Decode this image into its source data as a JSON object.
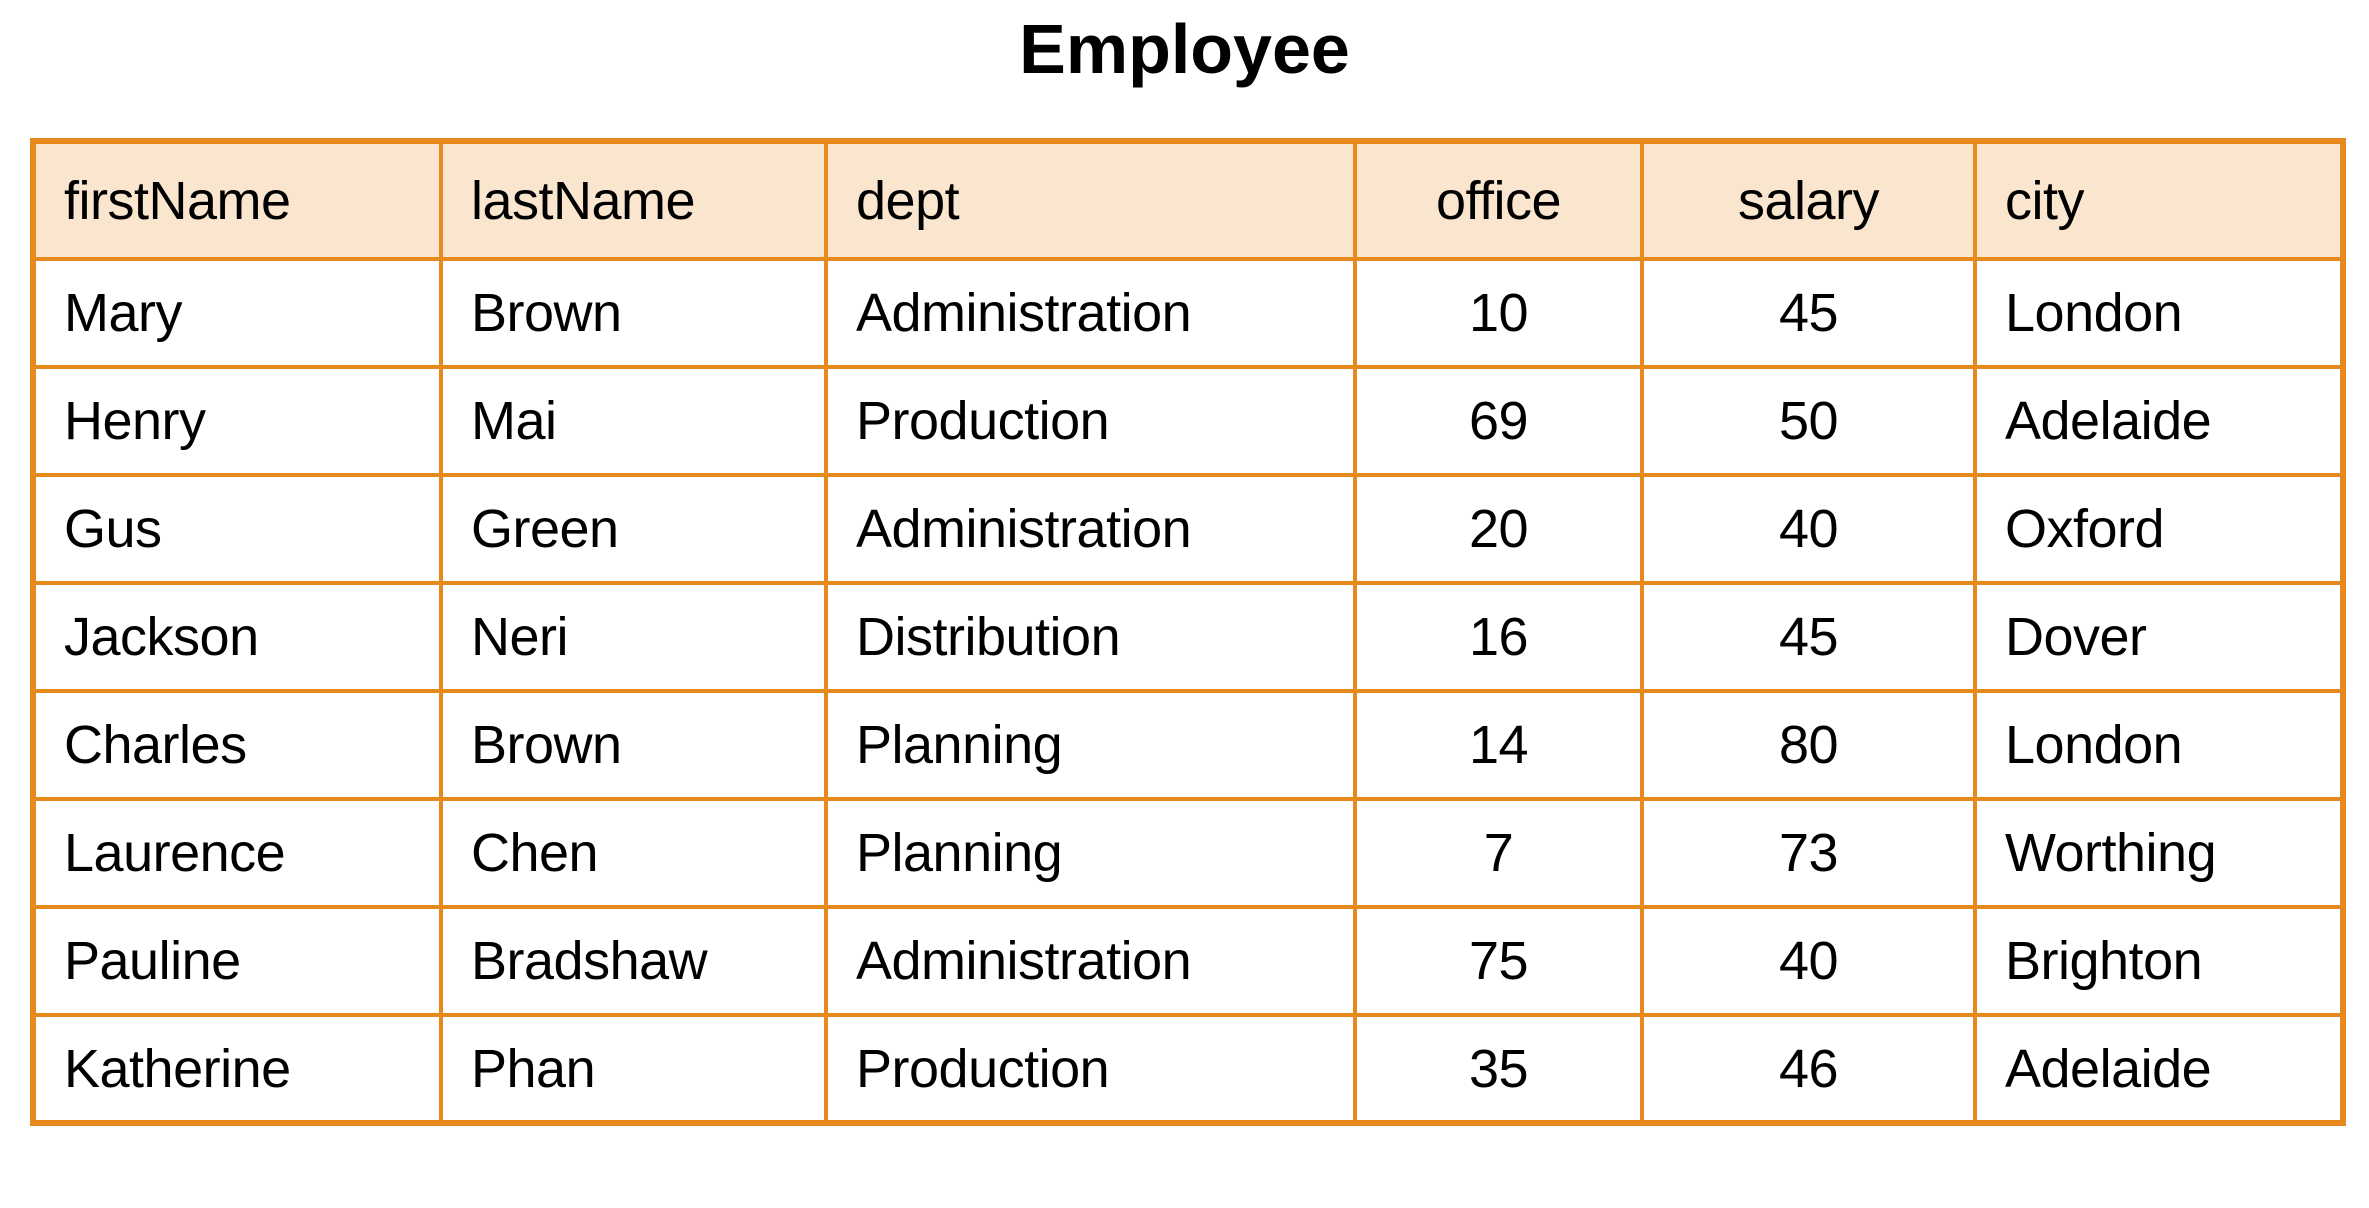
{
  "title": "Employee",
  "table": {
    "columns": [
      {
        "label": "firstName",
        "align": "left"
      },
      {
        "label": "lastName",
        "align": "left"
      },
      {
        "label": "dept",
        "align": "left"
      },
      {
        "label": "office",
        "align": "center"
      },
      {
        "label": "salary",
        "align": "center"
      },
      {
        "label": "city",
        "align": "left"
      }
    ],
    "rows": [
      {
        "firstName": "Mary",
        "lastName": "Brown",
        "dept": "Administration",
        "office": "10",
        "salary": "45",
        "city": "London"
      },
      {
        "firstName": "Henry",
        "lastName": "Mai",
        "dept": "Production",
        "office": "69",
        "salary": "50",
        "city": "Adelaide"
      },
      {
        "firstName": "Gus",
        "lastName": "Green",
        "dept": "Administration",
        "office": "20",
        "salary": "40",
        "city": "Oxford"
      },
      {
        "firstName": "Jackson",
        "lastName": "Neri",
        "dept": "Distribution",
        "office": "16",
        "salary": "45",
        "city": "Dover"
      },
      {
        "firstName": "Charles",
        "lastName": "Brown",
        "dept": "Planning",
        "office": "14",
        "salary": "80",
        "city": "London"
      },
      {
        "firstName": "Laurence",
        "lastName": "Chen",
        "dept": "Planning",
        "office": "7",
        "salary": "73",
        "city": "Worthing"
      },
      {
        "firstName": "Pauline",
        "lastName": "Bradshaw",
        "dept": "Administration",
        "office": "75",
        "salary": "40",
        "city": "Brighton"
      },
      {
        "firstName": "Katherine",
        "lastName": "Phan",
        "dept": "Production",
        "office": "35",
        "salary": "46",
        "city": "Adelaide"
      }
    ]
  },
  "colors": {
    "header_bg": "#FAE5CE",
    "border": "#E8891D",
    "text": "#000000",
    "background": "#FFFFFF"
  }
}
